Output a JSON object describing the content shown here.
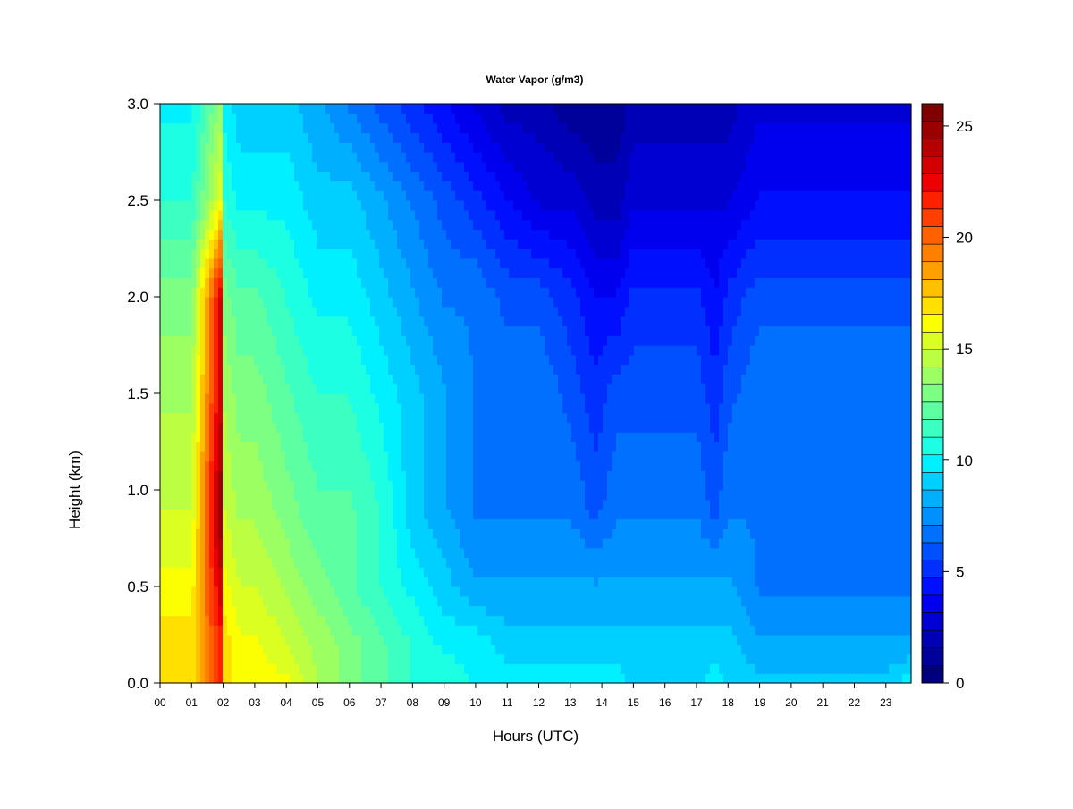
{
  "chart_data": {
    "type": "heatmap",
    "title": "Water Vapor (g/m3)",
    "xlabel": "Hours (UTC)",
    "ylabel": "Height (km)",
    "xlim": [
      0,
      23.8
    ],
    "ylim": [
      0.0,
      3.0
    ],
    "x_ticks": [
      {
        "value": 0,
        "label": "00"
      },
      {
        "value": 1,
        "label": "01"
      },
      {
        "value": 2,
        "label": "02"
      },
      {
        "value": 3,
        "label": "03"
      },
      {
        "value": 4,
        "label": "04"
      },
      {
        "value": 5,
        "label": "05"
      },
      {
        "value": 6,
        "label": "06"
      },
      {
        "value": 7,
        "label": "07"
      },
      {
        "value": 8,
        "label": "08"
      },
      {
        "value": 9,
        "label": "09"
      },
      {
        "value": 10,
        "label": "10"
      },
      {
        "value": 11,
        "label": "11"
      },
      {
        "value": 12,
        "label": "12"
      },
      {
        "value": 13,
        "label": "13"
      },
      {
        "value": 14,
        "label": "14"
      },
      {
        "value": 15,
        "label": "15"
      },
      {
        "value": 16,
        "label": "16"
      },
      {
        "value": 17,
        "label": "17"
      },
      {
        "value": 18,
        "label": "18"
      },
      {
        "value": 19,
        "label": "19"
      },
      {
        "value": 20,
        "label": "20"
      },
      {
        "value": 21,
        "label": "21"
      },
      {
        "value": 22,
        "label": "22"
      },
      {
        "value": 23,
        "label": "23"
      }
    ],
    "y_ticks": [
      {
        "value": 0.0,
        "label": "0.0"
      },
      {
        "value": 0.5,
        "label": "0.5"
      },
      {
        "value": 1.0,
        "label": "1.0"
      },
      {
        "value": 1.5,
        "label": "1.5"
      },
      {
        "value": 2.0,
        "label": "2.0"
      },
      {
        "value": 2.5,
        "label": "2.5"
      },
      {
        "value": 3.0,
        "label": "3.0"
      }
    ],
    "colorbar": {
      "range": [
        0,
        26
      ],
      "ticks": [
        {
          "value": 0,
          "label": "0"
        },
        {
          "value": 5,
          "label": "5"
        },
        {
          "value": 10,
          "label": "10"
        },
        {
          "value": 15,
          "label": "15"
        },
        {
          "value": 20,
          "label": "20"
        },
        {
          "value": 25,
          "label": "25"
        }
      ],
      "levels": [
        0,
        1,
        2,
        3,
        4,
        5,
        6,
        7,
        8,
        9,
        10,
        11,
        12,
        13,
        14,
        15,
        16,
        17,
        18,
        19,
        20,
        21,
        22,
        23,
        24,
        25,
        26
      ],
      "colors": [
        "#00007f",
        "#00009a",
        "#0000b6",
        "#0000d2",
        "#0000ee",
        "#0010ff",
        "#0030ff",
        "#0050ff",
        "#0070ff",
        "#0090ff",
        "#00b0ff",
        "#00d0ff",
        "#00f0ff",
        "#1cffe2",
        "#3cffc2",
        "#5cffa2",
        "#7cff82",
        "#9cff62",
        "#bcff42",
        "#dcff22",
        "#fcff02",
        "#ffe000",
        "#ffc000",
        "#ffa000",
        "#ff8000",
        "#ff6000",
        "#ff4000"
      ],
      "top_colors": [
        "#ff2000",
        "#ee0000",
        "#d20000",
        "#b60000",
        "#9a0000",
        "#7f0000"
      ]
    },
    "time_x": [
      0,
      1,
      2,
      2.05,
      2.5,
      3,
      4,
      5,
      6,
      7,
      8,
      9,
      10,
      11,
      12,
      13,
      13.8,
      14.5,
      15,
      16,
      17,
      17.6,
      18,
      19,
      20,
      21,
      22,
      23,
      23.8
    ],
    "height_y": [
      0.0,
      0.2,
      0.5,
      0.9,
      1.5,
      2.0,
      2.5,
      3.0
    ],
    "z": [
      [
        17,
        17,
        22,
        17,
        16,
        16,
        16,
        14,
        13,
        12,
        11,
        11,
        10,
        10,
        10,
        10,
        10,
        10,
        9,
        9,
        9,
        10,
        9,
        9,
        9,
        9,
        9,
        9,
        10
      ],
      [
        17,
        17,
        22,
        17,
        16,
        16,
        15,
        14,
        13,
        12,
        11,
        10,
        10,
        9,
        9,
        9,
        9,
        9,
        9,
        9,
        9,
        9,
        9,
        8,
        8,
        8,
        8,
        8,
        8
      ],
      [
        16,
        16,
        24,
        16,
        15,
        15,
        14,
        13,
        12,
        11,
        10,
        9,
        8,
        8,
        8,
        8,
        8,
        8,
        8,
        8,
        8,
        8,
        8,
        7,
        7,
        7,
        7,
        7,
        7
      ],
      [
        15,
        15,
        26,
        15,
        14,
        14,
        13,
        12,
        12,
        11,
        9,
        8,
        7,
        7,
        7,
        7,
        6,
        7,
        7,
        7,
        7,
        6,
        7,
        7,
        7,
        7,
        7,
        7,
        7
      ],
      [
        14,
        14,
        24,
        14,
        13,
        13,
        12,
        11,
        11,
        10,
        9,
        8,
        7,
        7,
        7,
        6,
        5,
        6,
        6,
        6,
        6,
        5,
        6,
        7,
        7,
        7,
        7,
        7,
        7
      ],
      [
        13,
        13,
        24,
        13,
        12,
        12,
        11,
        10,
        10,
        9,
        8,
        7,
        7,
        6,
        6,
        5,
        4,
        4,
        5,
        5,
        5,
        4,
        5,
        6,
        6,
        6,
        6,
        6,
        6
      ],
      [
        11,
        11,
        16,
        11,
        10,
        10,
        10,
        9,
        9,
        8,
        7,
        6,
        5,
        4,
        3,
        3,
        2,
        2,
        3,
        3,
        3,
        3,
        3,
        4,
        4,
        4,
        4,
        4,
        4
      ],
      [
        10,
        10,
        14,
        10,
        9,
        9,
        9,
        8,
        7,
        6,
        5,
        4,
        3,
        2,
        2,
        1,
        1,
        1,
        2,
        2,
        2,
        2,
        2,
        3,
        3,
        3,
        3,
        3,
        3
      ]
    ]
  }
}
